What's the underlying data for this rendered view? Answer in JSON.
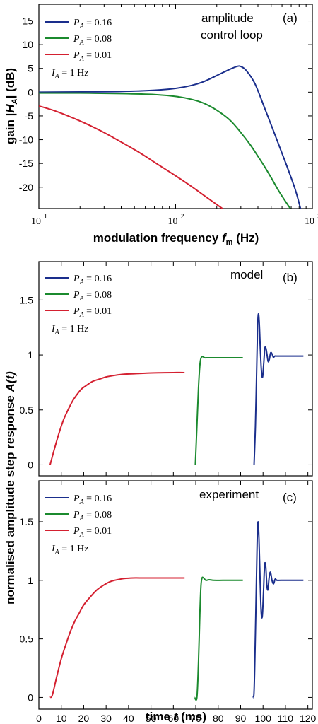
{
  "chart_data": [
    {
      "type": "line",
      "panel_label": "(a)",
      "annotation_lines": [
        "amplitude",
        "control loop"
      ],
      "ylabel_text": "gain |",
      "ylabel_symbol": "H",
      "ylabel_sub": "A",
      "ylabel_tail": "| (dB)",
      "xlabel_text": "modulation frequency ",
      "xlabel_symbol": "f",
      "xlabel_sub": "m",
      "xlabel_tail": " (Hz)",
      "x_scale": "log",
      "xlim": [
        10,
        1000
      ],
      "ylim": [
        -24.5,
        18.5
      ],
      "yticks": [
        15,
        10,
        5,
        0,
        -5,
        -10,
        -15,
        -20
      ],
      "ytick_labels": [
        "15",
        "10",
        "5",
        "0",
        "-5",
        "-10",
        "-15",
        "-20"
      ],
      "xtick_labels": [
        "10",
        "10",
        "10"
      ],
      "xtick_exponents": [
        "1",
        "2",
        "3"
      ],
      "xtick_values": [
        10,
        100,
        1000
      ],
      "legend": [
        "P_A = 0.16",
        "P_A = 0.08",
        "P_A = 0.01"
      ],
      "note": "I_A = 1 Hz",
      "legend_placement": "top-left",
      "series": [
        {
          "name": "P_A = 0.16",
          "color": "#1a2e8c",
          "x": [
            10,
            20,
            40,
            70,
            100,
            130,
            160,
            200,
            240,
            280,
            300,
            330,
            380,
            450,
            550,
            650,
            750,
            820
          ],
          "y": [
            0,
            0.05,
            0.15,
            0.4,
            0.8,
            1.4,
            2.2,
            3.5,
            4.6,
            5.4,
            5.4,
            4.5,
            1.8,
            -3.5,
            -10,
            -15.5,
            -20.5,
            -24.5
          ]
        },
        {
          "name": "P_A = 0.08",
          "color": "#1b8a2e",
          "x": [
            10,
            20,
            40,
            70,
            100,
            130,
            160,
            200,
            250,
            300,
            350,
            400,
            450,
            500,
            560,
            620,
            690
          ],
          "y": [
            -0.2,
            -0.2,
            -0.3,
            -0.5,
            -0.9,
            -1.5,
            -2.3,
            -3.8,
            -5.9,
            -8.5,
            -11,
            -13.5,
            -15.8,
            -18,
            -20.5,
            -22.5,
            -24.5
          ]
        },
        {
          "name": "P_A = 0.01",
          "color": "#d42030",
          "x": [
            10,
            13,
            17,
            22,
            30,
            40,
            55,
            75,
            100,
            130,
            170,
            220
          ],
          "y": [
            -2.9,
            -3.9,
            -5.2,
            -6.6,
            -8.5,
            -10.5,
            -12.8,
            -15.3,
            -17.6,
            -19.8,
            -22.2,
            -24.5
          ]
        }
      ]
    },
    {
      "type": "line",
      "panel_label": "(b)",
      "annotation": "model",
      "xlim": [
        0,
        122
      ],
      "ylim": [
        -0.1,
        1.85
      ],
      "yticks": [
        0,
        0.5,
        1,
        1.5
      ],
      "ytick_labels": [
        "0",
        "0.5",
        "1",
        "1.5"
      ],
      "legend": [
        "P_A = 0.16",
        "P_A = 0.08",
        "P_A = 0.01"
      ],
      "note": "I_A = 1 Hz",
      "legend_placement": "top-left",
      "series": [
        {
          "name": "P_A = 0.01",
          "color": "#d42030",
          "x": [
            5,
            7,
            9,
            11,
            13,
            15,
            17,
            19,
            21,
            24,
            27,
            30,
            34,
            38,
            43,
            48,
            54,
            60,
            65
          ],
          "y": [
            0,
            0.15,
            0.29,
            0.41,
            0.5,
            0.58,
            0.64,
            0.69,
            0.72,
            0.76,
            0.78,
            0.8,
            0.815,
            0.825,
            0.83,
            0.835,
            0.838,
            0.84,
            0.84
          ]
        },
        {
          "name": "P_A = 0.08",
          "color": "#1b8a2e",
          "x": [
            69.8,
            70.5,
            71.2,
            71.8,
            72.3,
            73,
            74,
            75,
            78,
            82,
            86,
            91
          ],
          "y": [
            0,
            0.35,
            0.7,
            0.9,
            0.97,
            0.985,
            0.975,
            0.975,
            0.975,
            0.975,
            0.975,
            0.975
          ]
        },
        {
          "name": "P_A = 0.16",
          "color": "#1a2e8c",
          "x": [
            96,
            96.6,
            97.1,
            97.5,
            97.9,
            98.3,
            98.8,
            99.3,
            99.8,
            100.3,
            100.8,
            101.3,
            101.8,
            102.3,
            102.8,
            103.4,
            104,
            104.6,
            105.3,
            106,
            108,
            112,
            118
          ],
          "y": [
            0,
            0.35,
            0.8,
            1.2,
            1.37,
            1.3,
            1.05,
            0.85,
            0.8,
            0.92,
            1.06,
            1.06,
            1.0,
            0.94,
            0.96,
            1.02,
            1.01,
            0.98,
            0.99,
            0.99,
            0.99,
            0.99,
            0.99
          ]
        }
      ]
    },
    {
      "type": "line",
      "panel_label": "(c)",
      "annotation": "experiment",
      "xlim": [
        0,
        122
      ],
      "ylim": [
        -0.1,
        1.85
      ],
      "yticks": [
        0,
        0.5,
        1,
        1.5
      ],
      "ytick_labels": [
        "0",
        "0.5",
        "1",
        "1.5"
      ],
      "xticks": [
        0,
        10,
        20,
        30,
        40,
        50,
        60,
        70,
        80,
        90,
        100,
        110,
        120
      ],
      "xtick_labels": [
        "0",
        "10",
        "20",
        "30",
        "40",
        "50",
        "60",
        "70",
        "80",
        "90",
        "100",
        "110",
        "120"
      ],
      "xlabel_text": "time ",
      "xlabel_symbol": "t",
      "xlabel_tail": " (ms)",
      "shared_ylabel_text": "normalised amplitude step response ",
      "shared_ylabel_symbol": "A",
      "shared_ylabel_tail": "(t)",
      "legend": [
        "P_A = 0.16",
        "P_A = 0.08",
        "P_A = 0.01"
      ],
      "note": "I_A = 1 Hz",
      "legend_placement": "top-left",
      "series": [
        {
          "name": "P_A = 0.01",
          "color": "#d42030",
          "x": [
            5,
            6,
            8,
            10,
            12,
            14,
            16,
            18,
            20,
            23,
            26,
            29,
            32,
            35,
            38,
            42,
            46,
            50,
            55,
            60,
            65
          ],
          "y": [
            0,
            0.02,
            0.18,
            0.33,
            0.45,
            0.56,
            0.65,
            0.72,
            0.79,
            0.86,
            0.92,
            0.96,
            0.99,
            1.005,
            1.015,
            1.02,
            1.02,
            1.02,
            1.02,
            1.02,
            1.02
          ]
        },
        {
          "name": "P_A = 0.08",
          "color": "#1b8a2e",
          "x": [
            69.5,
            70.5,
            71.2,
            71.8,
            72.3,
            72.8,
            73.5,
            74.5,
            76,
            78,
            82,
            86,
            91
          ],
          "y": [
            0,
            0,
            0.3,
            0.7,
            0.95,
            1.02,
            1.02,
            1.0,
            1.005,
            1.0,
            1.0,
            1.0,
            1.0
          ]
        },
        {
          "name": "P_A = 0.16",
          "color": "#1a2e8c",
          "x": [
            95.5,
            96,
            96.5,
            97,
            97.4,
            97.8,
            98.2,
            98.7,
            99.2,
            99.7,
            100.2,
            100.7,
            101.2,
            101.7,
            102.2,
            102.7,
            103.3,
            104,
            104.7,
            105.4,
            106.2,
            108,
            112,
            118
          ],
          "y": [
            0,
            0.05,
            0.45,
            0.95,
            1.35,
            1.5,
            1.35,
            1.0,
            0.72,
            0.7,
            0.9,
            1.13,
            1.12,
            0.96,
            0.92,
            1.02,
            1.07,
            1.0,
            0.97,
            1.01,
            1.0,
            1.0,
            1.0,
            1.0
          ]
        }
      ]
    }
  ]
}
